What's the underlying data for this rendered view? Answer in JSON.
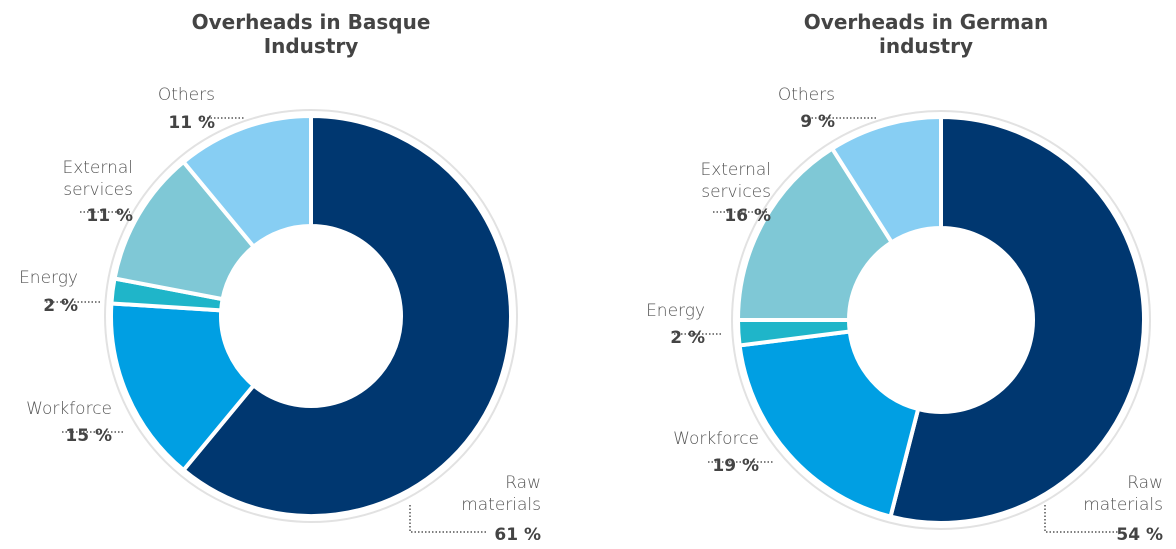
{
  "chart_data": [
    {
      "type": "pie",
      "title": "Overheads in Basque Industry",
      "categories": [
        "Raw materials",
        "Workforce",
        "Energy",
        "External services",
        "Others"
      ],
      "values": [
        61,
        15,
        2,
        11,
        11
      ],
      "value_labels": [
        "61 %",
        "15 %",
        "2 %",
        "11 %",
        "11 %"
      ],
      "colors": [
        "#003770",
        "#009fe3",
        "#1fb5c9",
        "#7fc8d6",
        "#87cef3"
      ]
    },
    {
      "type": "pie",
      "title": "Overheads in German industry",
      "categories": [
        "Raw materials",
        "Workforce",
        "Energy",
        "External services",
        "Others"
      ],
      "values": [
        54,
        19,
        2,
        16,
        9
      ],
      "value_labels": [
        "54 %",
        "19 %",
        "2 %",
        "16 %",
        "9 %"
      ],
      "colors": [
        "#003770",
        "#009fe3",
        "#1fb5c9",
        "#7fc8d6",
        "#87cef3"
      ]
    }
  ]
}
